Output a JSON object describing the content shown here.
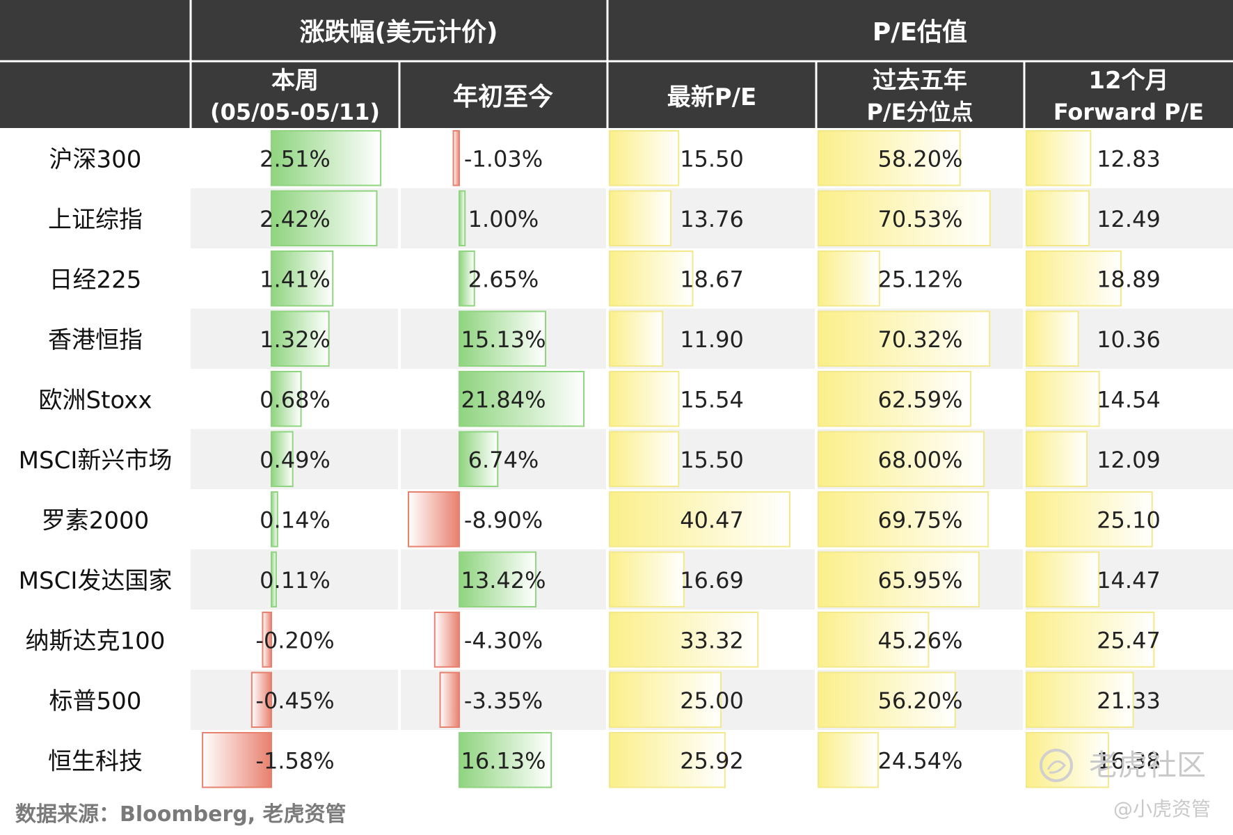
{
  "header": {
    "group_change": "涨跌幅(美元计价)",
    "group_pe": "P/E估值",
    "columns": [
      {
        "line1": "本周",
        "line2": "(05/05-05/11)"
      },
      {
        "line1": "年初至今",
        "line2": ""
      },
      {
        "line1": "最新P/E",
        "line2": ""
      },
      {
        "line1": "过去五年",
        "line2": "P/E分位点"
      },
      {
        "line1": "12个月",
        "line2": "Forward P/E"
      }
    ]
  },
  "chart_data": {
    "type": "table",
    "columns": [
      "本周 (05/05-05/11)",
      "年初至今",
      "最新P/E",
      "过去五年 P/E分位点",
      "12个月 Forward P/E"
    ],
    "rows": [
      {
        "name": "沪深300",
        "week": 2.51,
        "ytd": -1.03,
        "pe": 15.5,
        "pct5y": 58.2,
        "fpe": 12.83,
        "text": [
          "2.51%",
          "-1.03%",
          "15.50",
          "58.20%",
          "12.83"
        ]
      },
      {
        "name": "上证综指",
        "week": 2.42,
        "ytd": 1.0,
        "pe": 13.76,
        "pct5y": 70.53,
        "fpe": 12.49,
        "text": [
          "2.42%",
          "1.00%",
          "13.76",
          "70.53%",
          "12.49"
        ]
      },
      {
        "name": "日经225",
        "week": 1.41,
        "ytd": 2.65,
        "pe": 18.67,
        "pct5y": 25.12,
        "fpe": 18.89,
        "text": [
          "1.41%",
          "2.65%",
          "18.67",
          "25.12%",
          "18.89"
        ]
      },
      {
        "name": "香港恒指",
        "week": 1.32,
        "ytd": 15.13,
        "pe": 11.9,
        "pct5y": 70.32,
        "fpe": 10.36,
        "text": [
          "1.32%",
          "15.13%",
          "11.90",
          "70.32%",
          "10.36"
        ]
      },
      {
        "name": "欧洲Stoxx",
        "week": 0.68,
        "ytd": 21.84,
        "pe": 15.54,
        "pct5y": 62.59,
        "fpe": 14.54,
        "text": [
          "0.68%",
          "21.84%",
          "15.54",
          "62.59%",
          "14.54"
        ]
      },
      {
        "name": "MSCI新兴市场",
        "week": 0.49,
        "ytd": 6.74,
        "pe": 15.5,
        "pct5y": 68.0,
        "fpe": 12.09,
        "text": [
          "0.49%",
          "6.74%",
          "15.50",
          "68.00%",
          "12.09"
        ]
      },
      {
        "name": "罗素2000",
        "week": 0.14,
        "ytd": -8.9,
        "pe": 40.47,
        "pct5y": 69.75,
        "fpe": 25.1,
        "text": [
          "0.14%",
          "-8.90%",
          "40.47",
          "69.75%",
          "25.10"
        ]
      },
      {
        "name": "MSCI发达国家",
        "week": 0.11,
        "ytd": 13.42,
        "pe": 16.69,
        "pct5y": 65.95,
        "fpe": 14.47,
        "text": [
          "0.11%",
          "13.42%",
          "16.69",
          "65.95%",
          "14.47"
        ]
      },
      {
        "name": "纳斯达克100",
        "week": -0.2,
        "ytd": -4.3,
        "pe": 33.32,
        "pct5y": 45.26,
        "fpe": 25.47,
        "text": [
          "-0.20%",
          "-4.30%",
          "33.32",
          "45.26%",
          "25.47"
        ]
      },
      {
        "name": "标普500",
        "week": -0.45,
        "ytd": -3.35,
        "pe": 25.0,
        "pct5y": 56.2,
        "fpe": 21.33,
        "text": [
          "-0.45%",
          "-3.35%",
          "25.00",
          "56.20%",
          "21.33"
        ]
      },
      {
        "name": "恒生科技",
        "week": -1.58,
        "ytd": 16.13,
        "pe": 25.92,
        "pct5y": 24.54,
        "fpe": 16.38,
        "text": [
          "-1.58%",
          "16.13%",
          "25.92",
          "24.54%",
          "16.38"
        ]
      }
    ]
  },
  "footer": {
    "source": "数据来源：Bloomberg, 老虎资管",
    "watermark_brand": "老虎社区",
    "watermark_handle": "@小虎资管"
  },
  "colors": {
    "header_bg": "#3a3a3a",
    "positive_bar": "#8fd47f",
    "negative_bar": "#e8806e",
    "pe_bar": "#fbef8a",
    "alt_row": "#f1f1f1"
  }
}
